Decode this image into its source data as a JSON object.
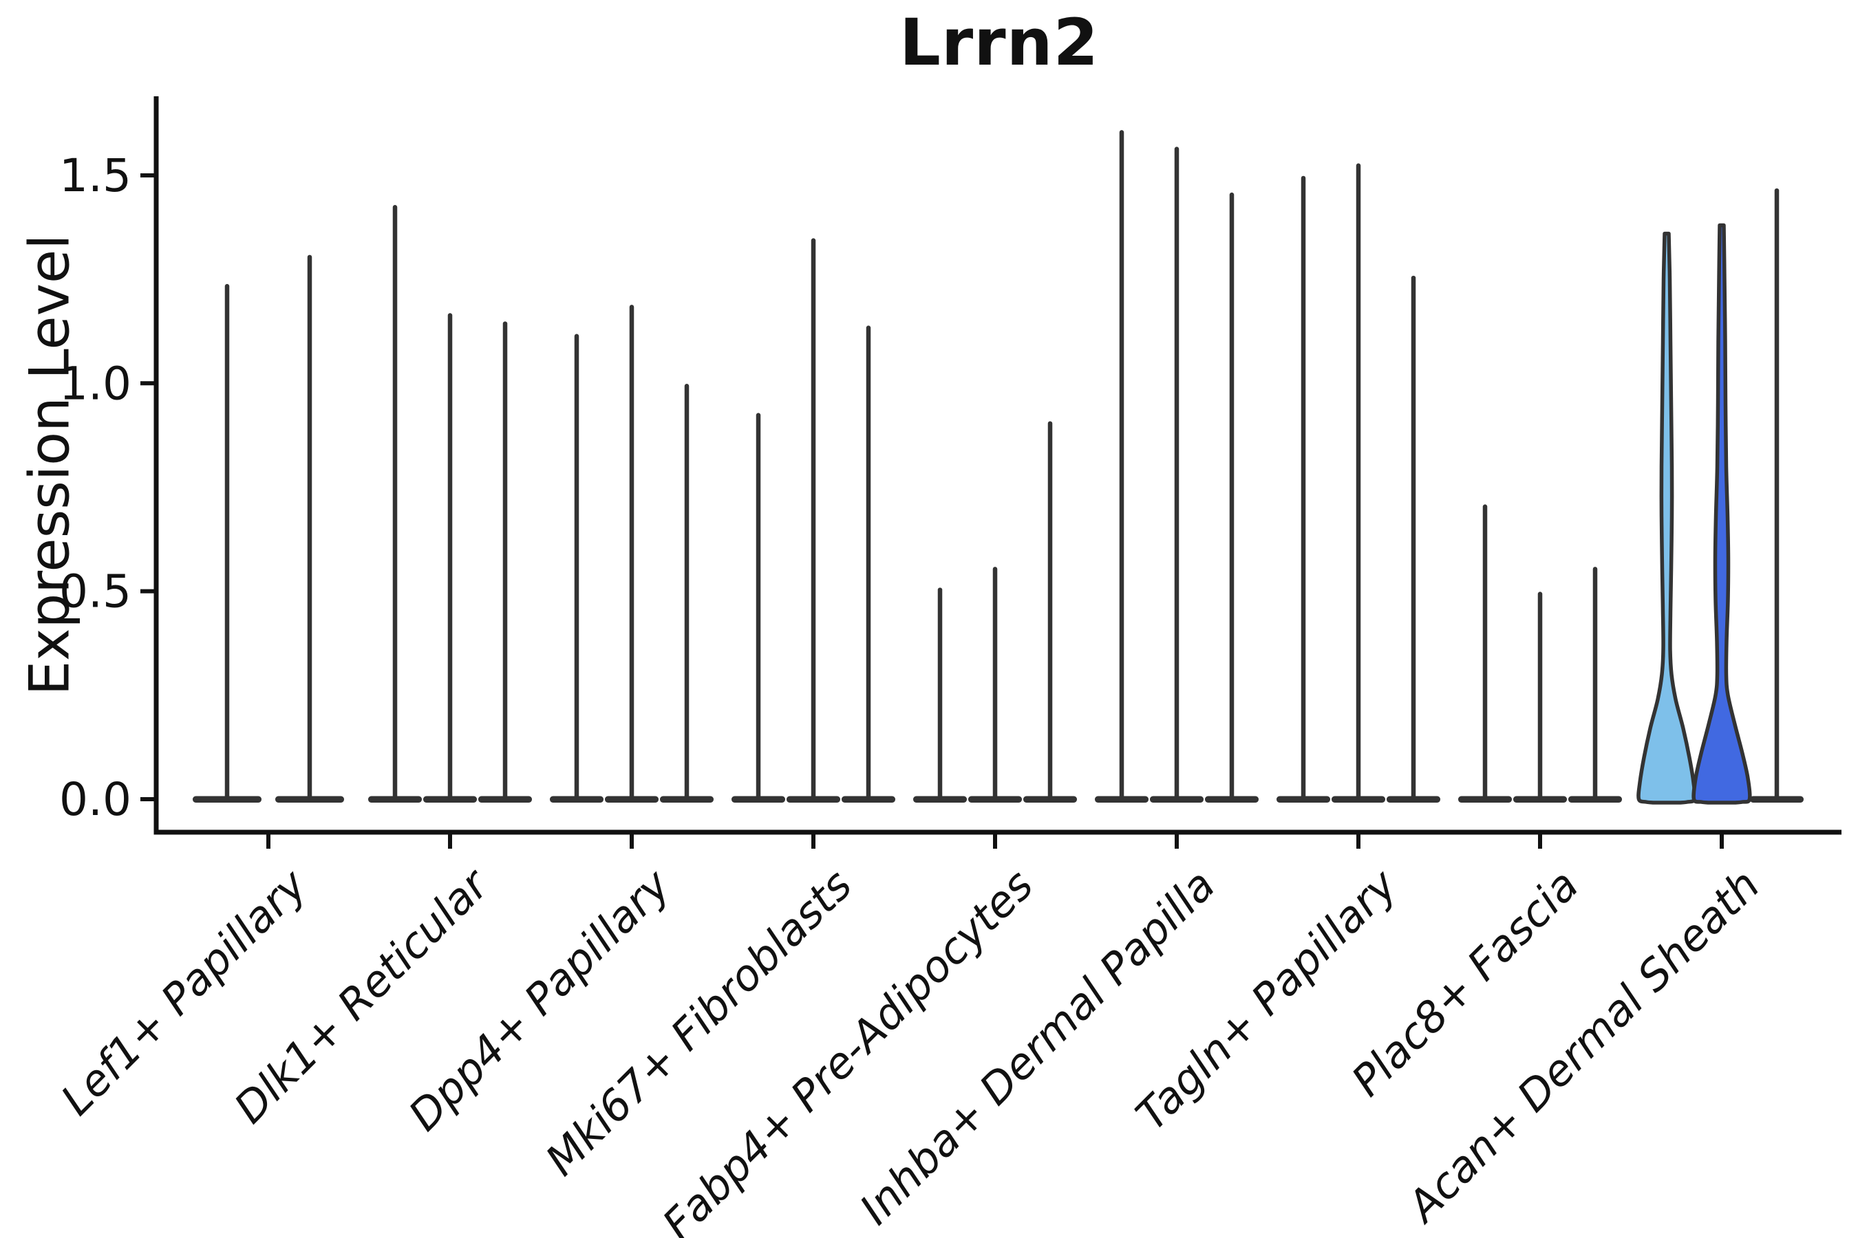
{
  "title": "Lrrn2",
  "y_axis": {
    "label": "Expression Level",
    "ticks": [
      {
        "label": "0.0",
        "value": 0.0
      },
      {
        "label": "0.5",
        "value": 0.5
      },
      {
        "label": "1.0",
        "value": 1.0
      },
      {
        "label": "1.5",
        "value": 1.5
      }
    ],
    "max_value": 1.69
  },
  "colors": {
    "axis": "#111111",
    "violin_outline": "#333333",
    "light_blue_fill": "#7EC0EA",
    "royal_blue_fill": "#4169E1",
    "text": "#111111",
    "background": "#ffffff"
  },
  "chart_data": {
    "type": "violin",
    "title": "Lrrn2",
    "xlabel": "",
    "ylabel": "Expression Level",
    "ylim": [
      0,
      1.69
    ],
    "grid": false,
    "legend_position": "none",
    "categories": [
      "Lef1+ Papillary",
      "Dlk1+ Reticular",
      "Dpp4+ Papillary",
      "Mki67+ Fibroblasts",
      "Fabp4+ Pre-Adipocytes",
      "Inhba+ Dermal Papilla",
      "Tagln+ Papillary",
      "Plac8+ Fascia",
      "Acan+ Dermal Sheath"
    ],
    "description": "Grouped violin plot of Lrrn2 expression; most violins collapse to a spike at 0 with a thin tail to the max value; only the first two violins of Acan+ Dermal Sheath have visible filled density (light blue and royal blue).",
    "groups": [
      {
        "category": "Lef1+ Papillary",
        "violins": [
          {
            "max": 1.24,
            "fill": null
          },
          {
            "max": 1.31,
            "fill": null
          }
        ]
      },
      {
        "category": "Dlk1+ Reticular",
        "violins": [
          {
            "max": 1.43,
            "fill": null
          },
          {
            "max": 1.17,
            "fill": null
          },
          {
            "max": 1.15,
            "fill": null
          }
        ]
      },
      {
        "category": "Dpp4+ Papillary",
        "violins": [
          {
            "max": 1.12,
            "fill": null
          },
          {
            "max": 1.19,
            "fill": null
          },
          {
            "max": 1.0,
            "fill": null
          }
        ]
      },
      {
        "category": "Mki67+ Fibroblasts",
        "violins": [
          {
            "max": 0.93,
            "fill": null
          },
          {
            "max": 1.35,
            "fill": null
          },
          {
            "max": 1.14,
            "fill": null
          }
        ]
      },
      {
        "category": "Fabp4+ Pre-Adipocytes",
        "violins": [
          {
            "max": 0.51,
            "fill": null
          },
          {
            "max": 0.56,
            "fill": null
          },
          {
            "max": 0.91,
            "fill": null
          }
        ]
      },
      {
        "category": "Inhba+ Dermal Papilla",
        "violins": [
          {
            "max": 1.61,
            "fill": null
          },
          {
            "max": 1.57,
            "fill": null
          },
          {
            "max": 1.46,
            "fill": null
          }
        ]
      },
      {
        "category": "Tagln+ Papillary",
        "violins": [
          {
            "max": 1.5,
            "fill": null
          },
          {
            "max": 1.53,
            "fill": null
          },
          {
            "max": 1.26,
            "fill": null
          }
        ]
      },
      {
        "category": "Plac8+ Fascia",
        "violins": [
          {
            "max": 0.71,
            "fill": null
          },
          {
            "max": 0.5,
            "fill": null
          },
          {
            "max": 0.56,
            "fill": null
          }
        ]
      },
      {
        "category": "Acan+ Dermal Sheath",
        "violins": [
          {
            "max": 1.36,
            "fill": "#7EC0EA",
            "profile": "light"
          },
          {
            "max": 1.38,
            "fill": "#4169E1",
            "profile": "royal"
          },
          {
            "max": 1.47,
            "fill": null
          }
        ]
      }
    ],
    "profiles": {
      "light": [
        [
          1.36,
          3
        ],
        [
          1.25,
          4.5
        ],
        [
          1.1,
          5.5
        ],
        [
          0.95,
          6.5
        ],
        [
          0.8,
          7.5
        ],
        [
          0.68,
          7.5
        ],
        [
          0.55,
          6.5
        ],
        [
          0.45,
          5.5
        ],
        [
          0.36,
          5.0
        ],
        [
          0.3,
          7
        ],
        [
          0.24,
          13
        ],
        [
          0.17,
          24
        ],
        [
          0.1,
          33
        ],
        [
          0.04,
          39
        ],
        [
          0.0,
          40.5
        ]
      ],
      "royal": [
        [
          1.38,
          3
        ],
        [
          1.25,
          4.0
        ],
        [
          1.1,
          5.0
        ],
        [
          0.95,
          5.5
        ],
        [
          0.8,
          6.5
        ],
        [
          0.68,
          8.5
        ],
        [
          0.58,
          9.5
        ],
        [
          0.48,
          9.0
        ],
        [
          0.38,
          7.0
        ],
        [
          0.3,
          6.5
        ],
        [
          0.25,
          9
        ],
        [
          0.18,
          19
        ],
        [
          0.11,
          30
        ],
        [
          0.05,
          38
        ],
        [
          0.0,
          40.5
        ]
      ]
    }
  }
}
